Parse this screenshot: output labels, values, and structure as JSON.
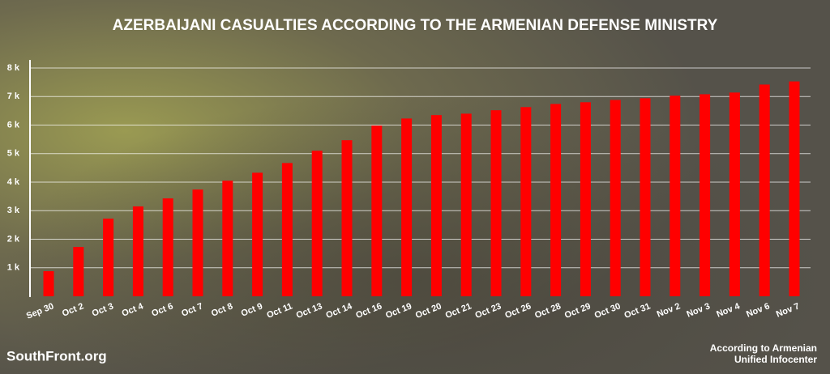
{
  "chart_data": {
    "type": "bar",
    "title": "AZERBAIJANI CASUALTIES ACCORDING TO THE ARMENIAN DEFENSE MINISTRY",
    "categories": [
      "Sep 30",
      "Oct 2",
      "Oct 3",
      "Oct 4",
      "Oct 6",
      "Oct 7",
      "Oct 8",
      "Oct 9",
      "Oct 11",
      "Oct 13",
      "Oct 14",
      "Oct 16",
      "Oct 19",
      "Oct 20",
      "Oct 21",
      "Oct 23",
      "Oct 26",
      "Oct 28",
      "Oct 29",
      "Oct 30",
      "Oct 31",
      "Nov 2",
      "Nov 3",
      "Nov 4",
      "Nov 6",
      "Nov 7"
    ],
    "values": [
      880,
      1730,
      2720,
      3150,
      3430,
      3740,
      4050,
      4330,
      4670,
      5100,
      5470,
      5980,
      6230,
      6350,
      6400,
      6520,
      6630,
      6740,
      6800,
      6880,
      6940,
      7030,
      7080,
      7140,
      7420,
      7530
    ],
    "color": "#ff0000",
    "ylim": [
      0,
      8000
    ],
    "yticks": [
      {
        "value": 1000,
        "label": "1 k"
      },
      {
        "value": 2000,
        "label": "2 k"
      },
      {
        "value": 3000,
        "label": "3 k"
      },
      {
        "value": 4000,
        "label": "4 k"
      },
      {
        "value": 5000,
        "label": "5 k"
      },
      {
        "value": 6000,
        "label": "6 k"
      },
      {
        "value": 7000,
        "label": "7 k"
      },
      {
        "value": 8000,
        "label": "8 k"
      }
    ],
    "grid": true,
    "branding": "SouthFront.org",
    "source": [
      "According to Armenian",
      "Unified Infocenter"
    ]
  }
}
